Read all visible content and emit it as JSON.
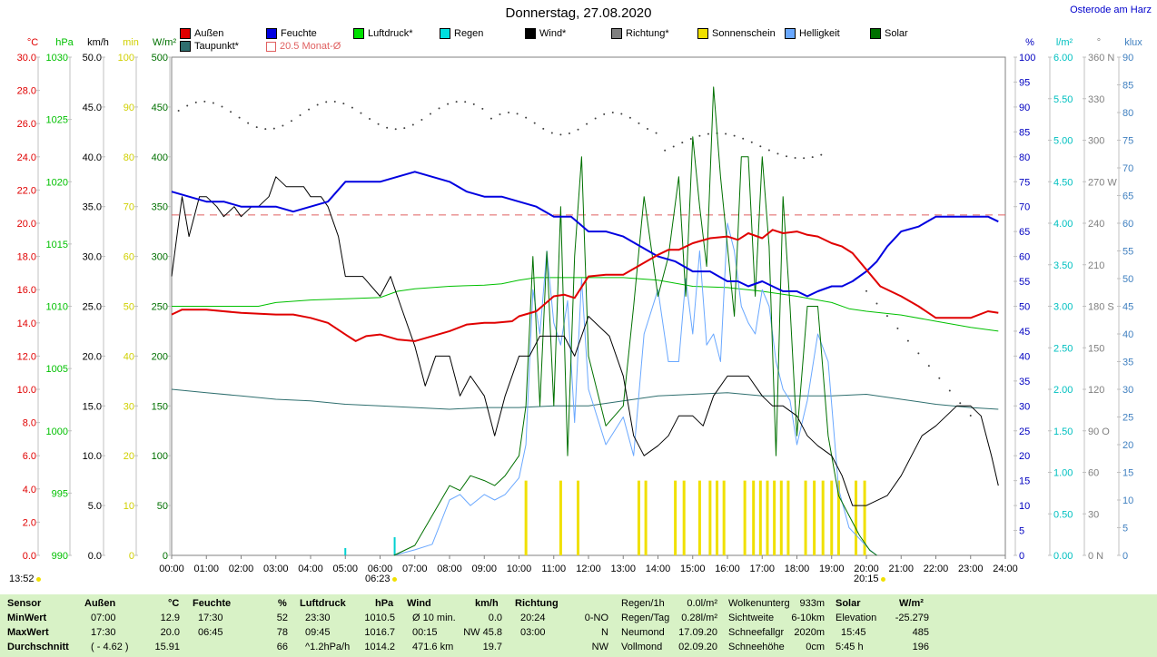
{
  "title": "Donnerstag, 27.08.2020",
  "station": "Osterode am Harz",
  "legend": [
    {
      "label": "Außen",
      "color": "#e00000"
    },
    {
      "label": "Feuchte",
      "color": "#0000e0"
    },
    {
      "label": "Luftdruck*",
      "color": "#00e000"
    },
    {
      "label": "Regen",
      "color": "#00e0e0"
    },
    {
      "label": "Wind*",
      "color": "#000000"
    },
    {
      "label": "Richtung*",
      "color": "#808080"
    },
    {
      "label": "Sonnenschein",
      "color": "#f0e000"
    },
    {
      "label": "Helligkeit",
      "color": "#6aa8ff"
    },
    {
      "label": "Solar",
      "color": "#007000"
    },
    {
      "label": "Taupunkt*",
      "color": "#2f6f6f"
    },
    {
      "label": "20.5 Monat-Ø",
      "color": "#e06060"
    }
  ],
  "axes": {
    "left": [
      {
        "unit": "°C",
        "color": "#e00000",
        "ticks": [
          "30.0",
          "28.0",
          "26.0",
          "24.0",
          "22.0",
          "20.0",
          "18.0",
          "16.0",
          "14.0",
          "12.0",
          "10.0",
          "8.0",
          "6.0",
          "4.0",
          "2.0",
          "0.0"
        ]
      },
      {
        "unit": "hPa",
        "color": "#00c000",
        "ticks": [
          "1030",
          "1025",
          "1020",
          "1015",
          "1010",
          "1005",
          "1000",
          "995",
          "990"
        ]
      },
      {
        "unit": "km/h",
        "color": "#000000",
        "ticks": [
          "50.0",
          "45.0",
          "40.0",
          "35.0",
          "30.0",
          "25.0",
          "20.0",
          "15.0",
          "10.0",
          "5.0",
          "0.0"
        ]
      },
      {
        "unit": "min",
        "color": "#d0d000",
        "ticks": [
          "100",
          "90",
          "80",
          "70",
          "60",
          "50",
          "40",
          "30",
          "20",
          "10",
          "0"
        ]
      },
      {
        "unit": "W/m²",
        "color": "#007000",
        "ticks": [
          "500",
          "450",
          "400",
          "350",
          "300",
          "250",
          "200",
          "150",
          "100",
          "50",
          "0"
        ]
      }
    ],
    "right": [
      {
        "unit": "%",
        "color": "#0000c0",
        "ticks": [
          "100",
          "95",
          "90",
          "85",
          "80",
          "75",
          "70",
          "65",
          "60",
          "55",
          "50",
          "45",
          "40",
          "35",
          "30",
          "25",
          "20",
          "15",
          "10",
          "5",
          "0"
        ]
      },
      {
        "unit": "l/m²",
        "color": "#00c0c0",
        "ticks": [
          "6.00",
          "5.50",
          "5.00",
          "4.50",
          "4.00",
          "3.50",
          "3.00",
          "2.50",
          "2.00",
          "1.50",
          "1.00",
          "0.50",
          "0.00"
        ]
      },
      {
        "unit": "°",
        "color": "#808080",
        "ticks": [
          "360 N",
          "330",
          "300",
          "270 W",
          "240",
          "210",
          "180 S",
          "150",
          "120",
          "90  O",
          "60",
          "30",
          "0   N"
        ]
      },
      {
        "unit": "klux",
        "color": "#4080c0",
        "ticks": [
          "90",
          "85",
          "80",
          "75",
          "70",
          "65",
          "60",
          "55",
          "50",
          "45",
          "40",
          "35",
          "30",
          "25",
          "20",
          "15",
          "10",
          "5",
          "0"
        ]
      }
    ]
  },
  "time_ticks": [
    "00:00",
    "01:00",
    "02:00",
    "03:00",
    "04:00",
    "05:00",
    "06:00",
    "07:00",
    "08:00",
    "09:00",
    "10:00",
    "11:00",
    "12:00",
    "13:00",
    "14:00",
    "15:00",
    "16:00",
    "17:00",
    "18:00",
    "19:00",
    "20:00",
    "21:00",
    "22:00",
    "23:00",
    "24:00"
  ],
  "markers": {
    "now": "13:52",
    "sunrise": "06:23",
    "sunset": "20:15"
  },
  "chart_data": {
    "type": "line",
    "x_unit": "hours",
    "xlim": [
      0,
      24
    ],
    "monthly_mean_temp": 20.5,
    "series": [
      {
        "name": "Außen",
        "axis": "°C",
        "color": "#e00000",
        "x": [
          0,
          0.3,
          1,
          2,
          3,
          3.5,
          4,
          4.5,
          5,
          5.3,
          5.6,
          6,
          6.5,
          7,
          7.5,
          8,
          8.5,
          9,
          9.3,
          9.8,
          10,
          10.5,
          11,
          11.3,
          11.6,
          12,
          12.5,
          13,
          13.5,
          14,
          14.3,
          14.6,
          15,
          15.5,
          16,
          16.3,
          16.6,
          17,
          17.3,
          17.6,
          18,
          18.3,
          18.6,
          19,
          19.3,
          19.6,
          20,
          20.4,
          21,
          21.5,
          22,
          22.5,
          23,
          23.5,
          23.8
        ],
        "y": [
          14.5,
          14.8,
          14.8,
          14.6,
          14.5,
          14.5,
          14.3,
          14.0,
          13.3,
          12.9,
          13.2,
          13.3,
          13.0,
          12.9,
          13.2,
          13.5,
          13.9,
          14.0,
          14.0,
          14.1,
          14.4,
          14.7,
          15.6,
          15.7,
          15.5,
          16.8,
          16.9,
          16.9,
          17.5,
          18.1,
          18.4,
          18.4,
          18.8,
          19.1,
          19.2,
          19.0,
          19.4,
          19.1,
          19.6,
          19.4,
          19.5,
          19.3,
          19.2,
          18.8,
          18.6,
          18.2,
          17.2,
          16.2,
          15.6,
          15.0,
          14.3,
          14.3,
          14.3,
          14.7,
          14.6
        ]
      },
      {
        "name": "Feuchte",
        "axis": "%",
        "color": "#0000e0",
        "x": [
          0,
          0.5,
          1,
          1.5,
          2,
          2.5,
          3,
          3.5,
          4,
          4.5,
          5,
          5.5,
          6,
          6.5,
          7,
          7.5,
          8,
          8.5,
          9,
          9.5,
          10,
          10.5,
          11,
          11.5,
          12,
          12.5,
          13,
          13.5,
          14,
          14.5,
          15,
          15.5,
          16,
          16.3,
          16.6,
          17,
          17.3,
          17.6,
          18,
          18.3,
          18.6,
          19,
          19.3,
          19.6,
          20,
          20.3,
          20.6,
          21,
          21.5,
          22,
          22.5,
          23,
          23.5,
          23.8
        ],
        "y": [
          73,
          72,
          71,
          71,
          70,
          70,
          70,
          69,
          70,
          71,
          75,
          75,
          75,
          76,
          77,
          76,
          75,
          73,
          72,
          72,
          71,
          70,
          68,
          68,
          65,
          65,
          64,
          62,
          60,
          59,
          57,
          57,
          55,
          55,
          54,
          55,
          54,
          53,
          53,
          52,
          53,
          54,
          54,
          55,
          57,
          59,
          62,
          65,
          66,
          68,
          68,
          68,
          68,
          67
        ]
      },
      {
        "name": "Luftdruck*",
        "axis": "hPa",
        "color": "#00c000",
        "x": [
          0,
          1,
          2,
          2.5,
          3,
          4,
          5,
          6,
          6.5,
          7,
          8,
          9,
          9.5,
          10,
          10.5,
          11,
          12,
          13,
          14,
          15,
          16,
          17,
          17.5,
          18,
          19,
          19.5,
          20,
          21,
          22,
          23,
          23.8
        ],
        "y": [
          1010.0,
          1010.0,
          1010.0,
          1010.0,
          1010.3,
          1010.5,
          1010.6,
          1010.7,
          1011.2,
          1011.4,
          1011.6,
          1011.7,
          1011.8,
          1012.1,
          1012.3,
          1012.3,
          1012.3,
          1012.3,
          1012.1,
          1011.6,
          1011.5,
          1011.2,
          1011.0,
          1010.8,
          1010.3,
          1009.8,
          1009.6,
          1009.3,
          1008.8,
          1008.3,
          1008.0
        ]
      },
      {
        "name": "Taupunkt*",
        "axis": "°C",
        "color": "#2f6f6f",
        "x": [
          0,
          1,
          2,
          3,
          4,
          5,
          6,
          7,
          8,
          9,
          10,
          11,
          12,
          13,
          14,
          15,
          16,
          17,
          18,
          19,
          20,
          21,
          22,
          23,
          23.8
        ],
        "y": [
          10.0,
          9.8,
          9.6,
          9.4,
          9.3,
          9.1,
          9.0,
          8.9,
          8.8,
          8.9,
          8.9,
          9.0,
          9.0,
          9.3,
          9.6,
          9.7,
          9.8,
          9.6,
          9.6,
          9.6,
          9.7,
          9.4,
          9.1,
          8.9,
          8.8
        ]
      },
      {
        "name": "Wind*",
        "axis": "km/h",
        "color": "#000000",
        "x": [
          0,
          0.3,
          0.5,
          0.8,
          1,
          1.3,
          1.5,
          1.8,
          2,
          2.3,
          2.5,
          2.8,
          3,
          3.3,
          3.5,
          3.8,
          4,
          4.3,
          4.5,
          4.8,
          5,
          5.5,
          6,
          6.3,
          6.6,
          7,
          7.3,
          7.6,
          8,
          8.3,
          8.6,
          9,
          9.3,
          9.6,
          10,
          10.3,
          10.6,
          11,
          11.3,
          11.6,
          12,
          12.3,
          12.6,
          13,
          13.3,
          13.6,
          14,
          14.3,
          14.6,
          15,
          15.3,
          15.6,
          16,
          16.3,
          16.6,
          17,
          17.3,
          17.6,
          18,
          18.3,
          18.6,
          19,
          19.3,
          19.6,
          20,
          20.3,
          20.6,
          21,
          21.3,
          21.6,
          22,
          22.3,
          22.6,
          23,
          23.3,
          23.6,
          23.8
        ],
        "y": [
          28,
          36,
          32,
          36,
          36,
          35,
          34,
          35,
          34,
          35,
          35,
          36,
          38,
          37,
          37,
          37,
          36,
          36,
          35,
          32,
          28,
          28,
          26,
          28,
          25,
          21,
          17,
          20,
          20,
          16,
          18,
          16,
          12,
          16,
          20,
          20,
          22,
          22,
          22,
          20,
          24,
          23,
          22,
          18,
          12,
          10,
          11,
          12,
          14,
          14,
          13,
          16,
          18,
          18,
          18,
          16,
          15,
          15,
          14,
          12,
          11,
          10,
          8,
          5,
          5,
          5.5,
          6,
          8,
          10,
          12,
          13,
          14,
          15,
          15,
          14,
          10,
          7
        ]
      },
      {
        "name": "Sonnenschein",
        "axis": "min",
        "color": "#f0e000",
        "bars": [
          {
            "x": 10.2,
            "y": 15
          },
          {
            "x": 11.2,
            "y": 15
          },
          {
            "x": 11.7,
            "y": 15
          },
          {
            "x": 13.45,
            "y": 15
          },
          {
            "x": 13.65,
            "y": 15
          },
          {
            "x": 14.5,
            "y": 15
          },
          {
            "x": 14.75,
            "y": 15
          },
          {
            "x": 15.2,
            "y": 15
          },
          {
            "x": 15.5,
            "y": 15
          },
          {
            "x": 15.7,
            "y": 15
          },
          {
            "x": 15.9,
            "y": 15
          },
          {
            "x": 16.5,
            "y": 15
          },
          {
            "x": 16.75,
            "y": 15
          },
          {
            "x": 16.95,
            "y": 15
          },
          {
            "x": 17.15,
            "y": 15
          },
          {
            "x": 17.35,
            "y": 15
          },
          {
            "x": 17.55,
            "y": 15
          },
          {
            "x": 17.75,
            "y": 15
          },
          {
            "x": 18.25,
            "y": 15
          },
          {
            "x": 18.5,
            "y": 15
          },
          {
            "x": 18.75,
            "y": 15
          },
          {
            "x": 19.0,
            "y": 15
          },
          {
            "x": 19.2,
            "y": 15
          },
          {
            "x": 19.7,
            "y": 15
          },
          {
            "x": 19.95,
            "y": 15
          }
        ]
      },
      {
        "name": "Helligkeit",
        "axis": "klux",
        "color": "#6aa8ff",
        "x": [
          6.4,
          7,
          7.5,
          8,
          8.3,
          8.6,
          9,
          9.3,
          9.6,
          10,
          10.2,
          10.4,
          10.6,
          10.8,
          11,
          11.2,
          11.4,
          11.6,
          11.8,
          12,
          12.5,
          13,
          13.3,
          13.6,
          14,
          14.3,
          14.6,
          14.8,
          15,
          15.2,
          15.4,
          15.6,
          15.8,
          16,
          16.2,
          16.4,
          16.6,
          16.8,
          17,
          17.2,
          17.4,
          17.6,
          17.8,
          18,
          18.3,
          18.6,
          18.9,
          19.2,
          19.5,
          19.8,
          20.1,
          20.3
        ],
        "y": [
          0,
          1,
          2,
          10,
          11,
          9,
          11,
          10,
          11,
          14,
          20,
          48,
          40,
          55,
          42,
          38,
          46,
          24,
          50,
          30,
          20,
          25,
          18,
          40,
          48,
          35,
          35,
          50,
          40,
          55,
          38,
          40,
          35,
          60,
          55,
          45,
          42,
          40,
          48,
          45,
          35,
          30,
          28,
          20,
          28,
          40,
          35,
          12,
          5,
          3,
          1,
          0
        ]
      },
      {
        "name": "Solar",
        "axis": "W/m²",
        "color": "#007000",
        "x": [
          6.4,
          7,
          7.5,
          8,
          8.3,
          8.6,
          9,
          9.3,
          9.6,
          10,
          10.2,
          10.4,
          10.6,
          10.8,
          11,
          11.2,
          11.4,
          11.6,
          11.8,
          12,
          12.5,
          13,
          13.3,
          13.6,
          14,
          14.3,
          14.6,
          14.8,
          15,
          15.2,
          15.4,
          15.6,
          15.8,
          16,
          16.2,
          16.4,
          16.6,
          16.8,
          17,
          17.2,
          17.4,
          17.6,
          17.8,
          18,
          18.3,
          18.6,
          18.9,
          19.2,
          19.5,
          19.8,
          20.1,
          20.3
        ],
        "y": [
          0,
          10,
          40,
          70,
          65,
          80,
          75,
          70,
          80,
          100,
          150,
          300,
          150,
          305,
          150,
          350,
          100,
          300,
          400,
          200,
          130,
          150,
          250,
          360,
          260,
          300,
          380,
          260,
          420,
          350,
          290,
          470,
          380,
          310,
          240,
          400,
          400,
          260,
          400,
          310,
          100,
          360,
          250,
          120,
          250,
          250,
          120,
          60,
          40,
          20,
          5,
          0
        ]
      }
    ]
  },
  "stats": {
    "headers": {
      "sensor": "Sensor",
      "aussen": "Außen",
      "aussen_unit": "°C",
      "feuchte": "Feuchte",
      "feuchte_unit": "%",
      "luftdruck": "Luftdruck",
      "luftdruck_unit": "hPa",
      "wind": "Wind",
      "wind_unit": "km/h",
      "richtung": "Richtung"
    },
    "rows": [
      {
        "label": "MinWert",
        "aussen_time": "07:00",
        "aussen_val": "12.9",
        "feuchte_time": "17:30",
        "feuchte_val": "52",
        "luft_time": "23:30",
        "luft_val": "1010.5",
        "wind_time": "Ø 10 min.",
        "wind_val": "0.0",
        "richt_time": "20:24",
        "richt_val": "0-NO"
      },
      {
        "label": "MaxWert",
        "aussen_time": "17:30",
        "aussen_val": "20.0",
        "feuchte_time": "06:45",
        "feuchte_val": "78",
        "luft_time": "09:45",
        "luft_val": "1016.7",
        "wind_time": "00:15",
        "wind_val": "NW 45.8",
        "richt_time": "03:00",
        "richt_val": "N"
      },
      {
        "label": "Durchschnitt",
        "aussen_time": "( - 4.62 )",
        "aussen_val": "15.91",
        "feuchte_time": "",
        "feuchte_val": "66",
        "luft_time": "^1.2hPa/h",
        "luft_val": "1014.2",
        "wind_time": "471.6 km",
        "wind_val": "19.7",
        "richt_time": "",
        "richt_val": "NW"
      }
    ],
    "extra": [
      {
        "label": "Regen/1h",
        "value": "0.0l/m²"
      },
      {
        "label": "Regen/Tag",
        "value": "0.28l/m²"
      },
      {
        "label": "Neumond",
        "value": "17.09.20"
      },
      {
        "label": "Vollmond",
        "value": "02.09.20"
      },
      {
        "label": "Wolkenunterg",
        "value": "933m"
      },
      {
        "label": "Sichtweite",
        "value": "6-10km"
      },
      {
        "label": "Schneefallgr",
        "value": "2020m"
      },
      {
        "label": "Schneehöhe",
        "value": "0cm"
      }
    ],
    "solar": {
      "header": "Solar",
      "unit": "W/m²",
      "elev_label": "Elevation",
      "elev_val": "-25.279",
      "max_time": "15:45",
      "max_val": "485",
      "dur_label": "5:45 h",
      "dur_val": "196"
    }
  }
}
